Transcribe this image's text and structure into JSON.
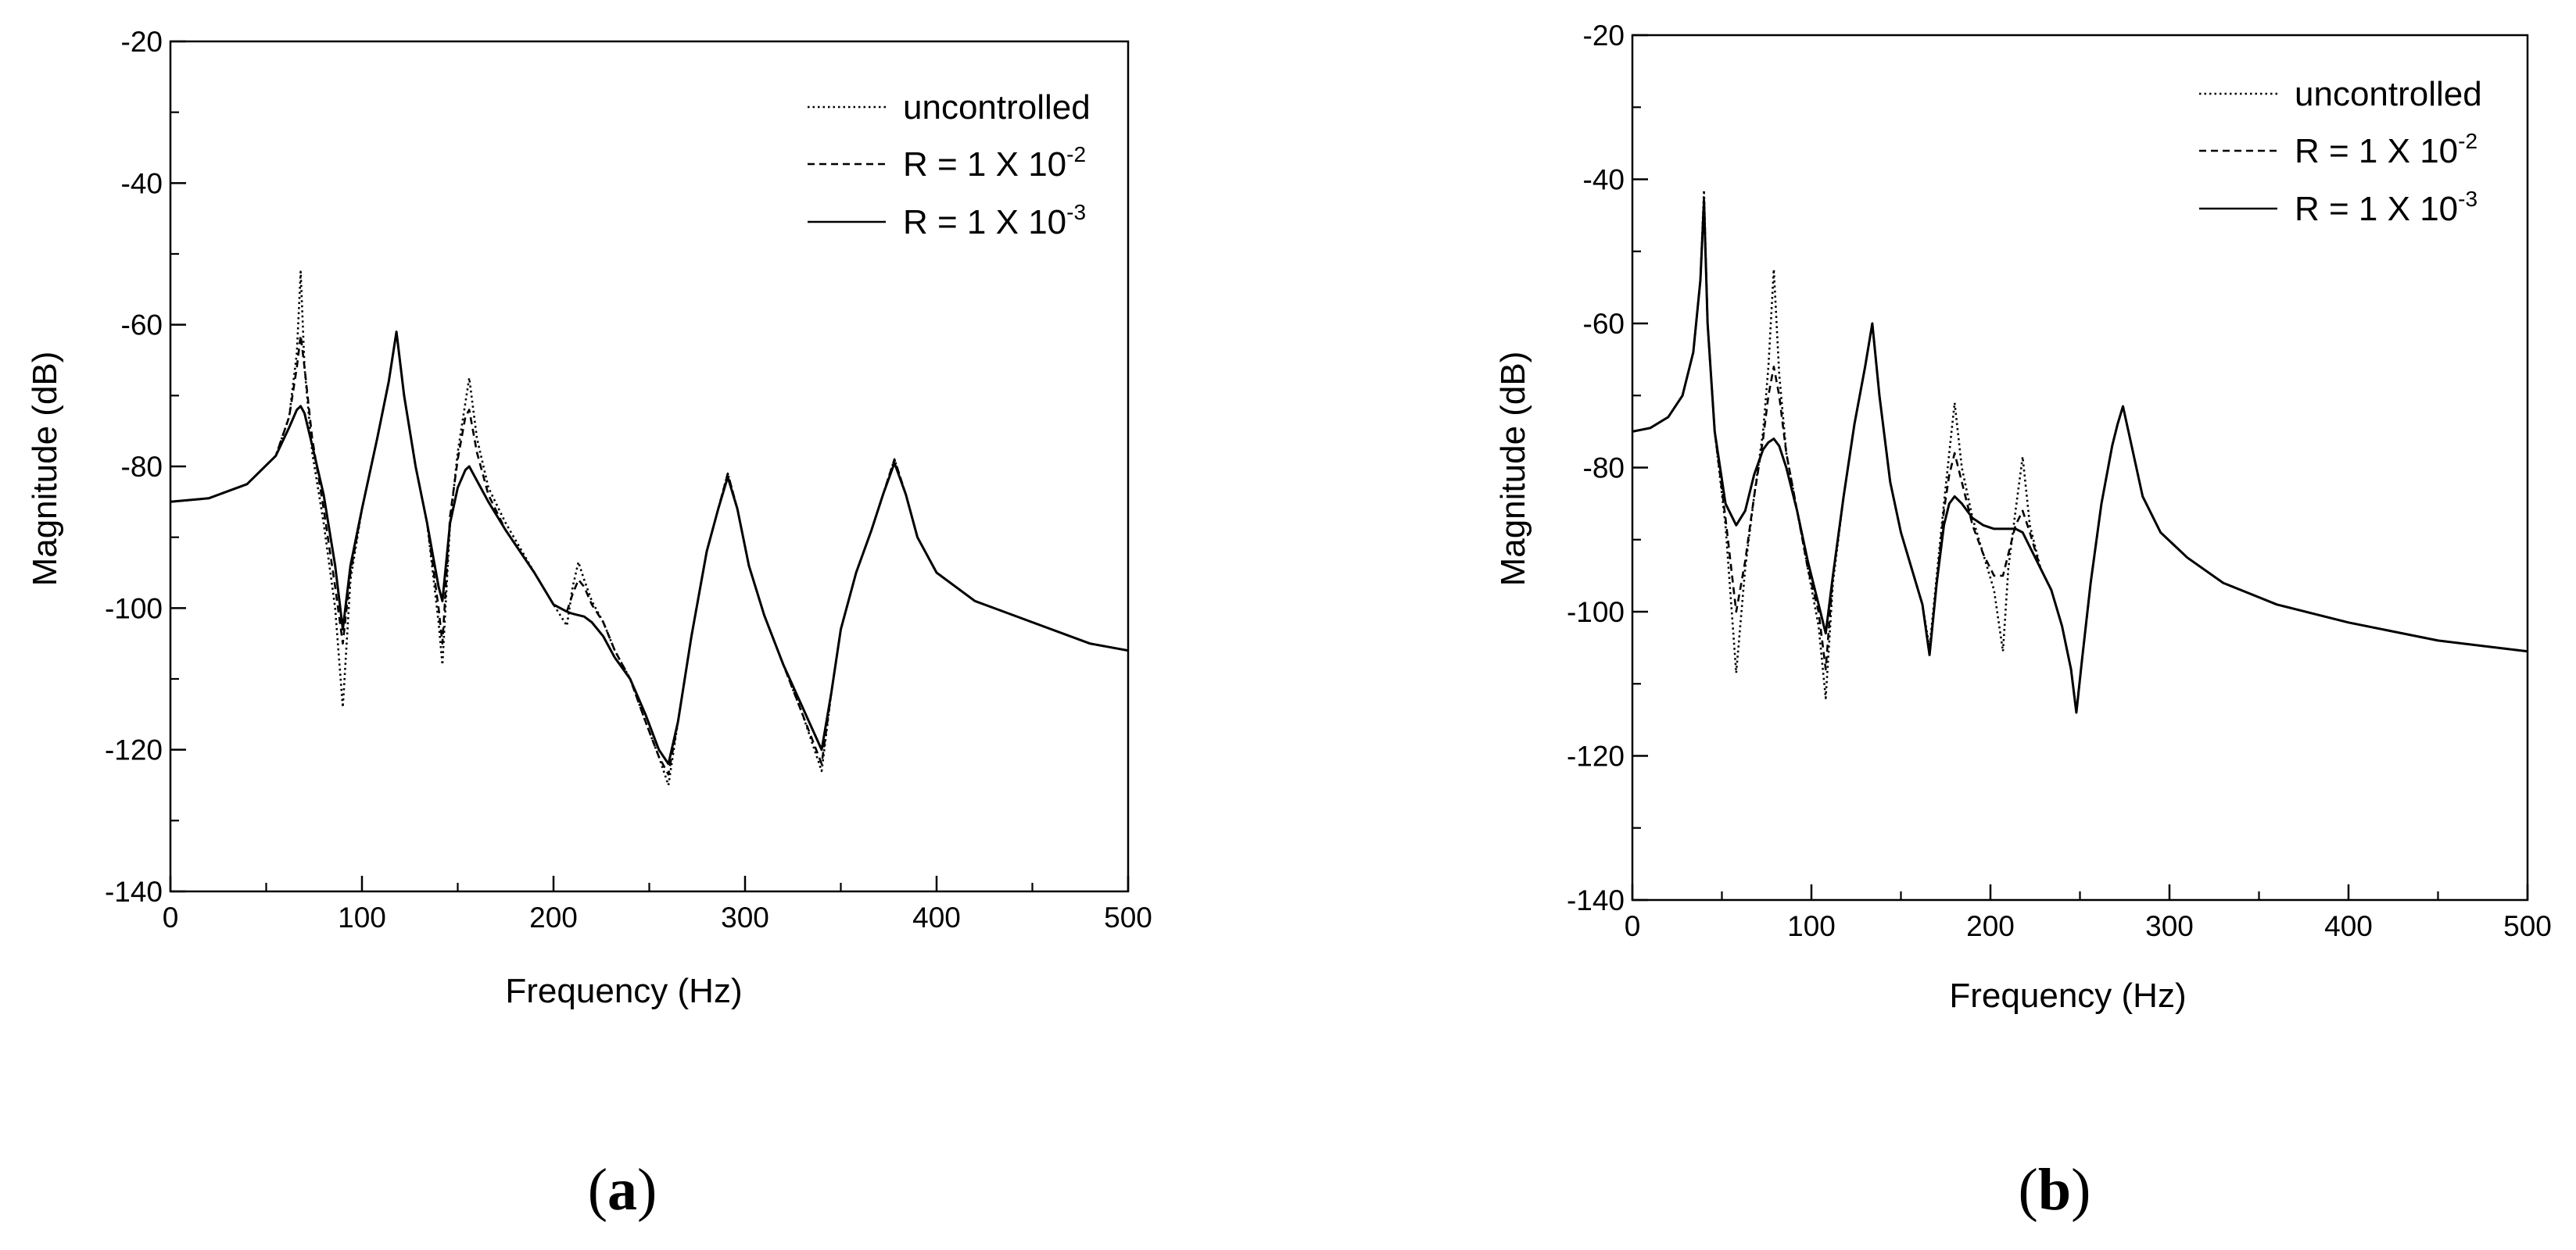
{
  "chart_data": [
    {
      "type": "line",
      "panel": "a",
      "panel_label": "(a)",
      "panel_letter": "a",
      "title": "",
      "xlabel": "Frequency (Hz)",
      "ylabel": "Magnitude (dB)",
      "xlim": [
        0,
        500
      ],
      "ylim": [
        -140,
        -20
      ],
      "x_ticks": [
        0,
        100,
        200,
        300,
        400,
        500
      ],
      "y_ticks": [
        -20,
        -40,
        -60,
        -80,
        -100,
        -120,
        -140
      ],
      "x_tick_labels": [
        "0",
        "100",
        "200",
        "300",
        "400",
        "500"
      ],
      "y_tick_labels": [
        "-20",
        "-40",
        "-60",
        "-80",
        "-100",
        "-120",
        "-140"
      ],
      "legend_position": "top-right",
      "legend": [
        {
          "base": "uncontrolled",
          "sup": ""
        },
        {
          "base": "R = 1 X 10",
          "sup": "-2"
        },
        {
          "base": "R = 1 X 10",
          "sup": "-3"
        }
      ],
      "series": [
        {
          "name": "uncontrolled",
          "style": "dotted",
          "x": [
            0,
            20,
            40,
            55,
            62,
            66,
            68,
            70,
            74,
            80,
            86,
            90,
            94,
            100,
            108,
            114,
            118,
            122,
            128,
            134,
            140,
            142,
            146,
            150,
            154,
            156,
            160,
            166,
            175,
            190,
            200,
            207,
            210,
            213,
            216,
            220,
            226,
            232,
            240,
            248,
            255,
            260,
            265,
            272,
            280,
            286,
            291,
            296,
            302,
            310,
            320,
            330,
            340,
            345,
            350,
            358,
            366,
            372,
            378,
            384,
            390,
            400,
            420,
            450,
            480,
            500
          ],
          "y": [
            -85,
            -84.5,
            -82.5,
            -78.5,
            -73,
            -64,
            -52.5,
            -66,
            -78,
            -88,
            -100,
            -114,
            -96,
            -86,
            -76,
            -68,
            -61,
            -70,
            -80,
            -88,
            -102,
            -108,
            -88,
            -78,
            -71,
            -67.5,
            -76,
            -83,
            -88,
            -95,
            -99.5,
            -102.5,
            -97,
            -93.5,
            -96,
            -99,
            -102,
            -106,
            -110,
            -116,
            -121,
            -125,
            -116,
            -104,
            -92,
            -86,
            -81,
            -86,
            -94,
            -101,
            -108,
            -115,
            -123,
            -112,
            -103,
            -95,
            -89,
            -84,
            -79,
            -84,
            -90,
            -95,
            -99,
            -102,
            -105,
            -106
          ]
        },
        {
          "name": "R = 1 X 10-2",
          "style": "dashed",
          "x": [
            0,
            20,
            40,
            55,
            62,
            66,
            68,
            70,
            74,
            80,
            86,
            90,
            94,
            100,
            108,
            114,
            118,
            122,
            128,
            134,
            140,
            142,
            146,
            150,
            154,
            156,
            160,
            166,
            175,
            190,
            200,
            207,
            210,
            213,
            216,
            220,
            226,
            232,
            240,
            248,
            255,
            260,
            265,
            272,
            280,
            286,
            291,
            296,
            302,
            310,
            320,
            330,
            340,
            345,
            350,
            358,
            366,
            372,
            378,
            384,
            390,
            400,
            420,
            450,
            480,
            500
          ],
          "y": [
            -85,
            -84.5,
            -82.5,
            -78.5,
            -73,
            -66,
            -61.5,
            -66,
            -76,
            -86,
            -97,
            -105,
            -95,
            -86,
            -76,
            -68,
            -61,
            -70,
            -80,
            -88,
            -100,
            -105,
            -87,
            -79,
            -73,
            -72,
            -78,
            -84,
            -89,
            -95,
            -99.5,
            -100.5,
            -98,
            -96,
            -97,
            -99.5,
            -102,
            -106,
            -110,
            -116,
            -121,
            -123.5,
            -116,
            -104,
            -92,
            -86,
            -81,
            -86,
            -94,
            -101,
            -108,
            -115,
            -122,
            -112,
            -103,
            -95,
            -89,
            -84,
            -79,
            -84,
            -90,
            -95,
            -99,
            -102,
            -105,
            -106
          ]
        },
        {
          "name": "R = 1 X 10-3",
          "style": "solid",
          "x": [
            0,
            20,
            40,
            55,
            62,
            66,
            68,
            70,
            74,
            80,
            86,
            90,
            94,
            100,
            108,
            114,
            118,
            122,
            128,
            134,
            140,
            142,
            146,
            150,
            154,
            156,
            160,
            166,
            175,
            190,
            200,
            207,
            210,
            213,
            216,
            220,
            226,
            232,
            240,
            248,
            255,
            260,
            265,
            272,
            280,
            286,
            291,
            296,
            302,
            310,
            320,
            330,
            340,
            345,
            350,
            358,
            366,
            372,
            378,
            384,
            390,
            400,
            420,
            450,
            480,
            500
          ],
          "y": [
            -85,
            -84.5,
            -82.5,
            -78.5,
            -74.5,
            -72,
            -71.5,
            -72.5,
            -77,
            -84,
            -94,
            -103,
            -94,
            -86,
            -76,
            -68,
            -61,
            -70,
            -80,
            -88,
            -97,
            -99,
            -88,
            -83,
            -80.5,
            -80,
            -82,
            -85,
            -89,
            -95,
            -99.5,
            -100.5,
            -100.8,
            -101,
            -101.2,
            -102,
            -104,
            -107,
            -110,
            -115,
            -120,
            -122,
            -116,
            -104,
            -92,
            -86,
            -81.5,
            -86,
            -94,
            -101,
            -108,
            -114,
            -120,
            -112,
            -103,
            -95,
            -89,
            -84,
            -79.5,
            -84,
            -90,
            -95,
            -99,
            -102,
            -105,
            -106
          ]
        }
      ]
    },
    {
      "type": "line",
      "panel": "b",
      "panel_label": "(b)",
      "panel_letter": "b",
      "title": "",
      "xlabel": "Frequency (Hz)",
      "ylabel": "Magnitude (dB)",
      "xlim": [
        0,
        500
      ],
      "ylim": [
        -140,
        -20
      ],
      "x_ticks": [
        0,
        100,
        200,
        300,
        400,
        500
      ],
      "y_ticks": [
        -20,
        -40,
        -60,
        -80,
        -100,
        -120,
        -140
      ],
      "x_tick_labels": [
        "0",
        "100",
        "200",
        "300",
        "400",
        "500"
      ],
      "y_tick_labels": [
        "-20",
        "-40",
        "-60",
        "-80",
        "-100",
        "-120",
        "-140"
      ],
      "legend_position": "top-right",
      "legend": [
        {
          "base": "uncontrolled",
          "sup": ""
        },
        {
          "base": "R = 1 X 10",
          "sup": "-2"
        },
        {
          "base": "R = 1 X 10",
          "sup": "-3"
        }
      ],
      "series": [
        {
          "name": "uncontrolled",
          "style": "dotted",
          "x": [
            0,
            10,
            20,
            28,
            34,
            38,
            40,
            42,
            46,
            52,
            58,
            63,
            68,
            73,
            76,
            79,
            82,
            86,
            92,
            98,
            104,
            108,
            112,
            118,
            124,
            130,
            134,
            138,
            144,
            150,
            156,
            162,
            166,
            170,
            174,
            177,
            180,
            184,
            190,
            196,
            202,
            207,
            210,
            214,
            218,
            222,
            228,
            234,
            240,
            245,
            248,
            251,
            256,
            262,
            268,
            271,
            274,
            278,
            285,
            295,
            310,
            330,
            360,
            400,
            450,
            500
          ],
          "y": [
            -75,
            -74.5,
            -73,
            -70,
            -64,
            -54,
            -41.5,
            -60,
            -75,
            -88,
            -108.5,
            -94,
            -84,
            -75,
            -66,
            -52.5,
            -67,
            -78,
            -86,
            -94,
            -102,
            -112,
            -96,
            -84,
            -74,
            -66,
            -60,
            -70,
            -82,
            -89,
            -94,
            -99,
            -105,
            -95,
            -85,
            -78,
            -71,
            -80,
            -87,
            -92,
            -97,
            -105.5,
            -94,
            -86,
            -78.5,
            -88,
            -94,
            -97,
            -102,
            -108,
            -114,
            -107,
            -96,
            -85,
            -77,
            -74,
            -71.5,
            -76,
            -84,
            -89,
            -92.5,
            -96,
            -99,
            -101.5,
            -104,
            -105.5
          ]
        },
        {
          "name": "R = 1 X 10-2",
          "style": "dashed",
          "x": [
            0,
            10,
            20,
            28,
            34,
            38,
            40,
            42,
            46,
            52,
            58,
            63,
            68,
            73,
            76,
            79,
            82,
            86,
            92,
            98,
            104,
            108,
            112,
            118,
            124,
            130,
            134,
            138,
            144,
            150,
            156,
            162,
            166,
            170,
            174,
            177,
            180,
            184,
            190,
            196,
            202,
            207,
            210,
            214,
            218,
            222,
            228,
            234,
            240,
            245,
            248,
            251,
            256,
            262,
            268,
            271,
            274,
            278,
            285,
            295,
            310,
            330,
            360,
            400,
            450,
            500
          ],
          "y": [
            -75,
            -74.5,
            -73,
            -70,
            -64,
            -54,
            -42.5,
            -60,
            -75,
            -87,
            -100,
            -93,
            -84,
            -76,
            -70,
            -66,
            -70,
            -78,
            -86,
            -94,
            -100,
            -108,
            -95,
            -84,
            -74,
            -66,
            -60,
            -70,
            -82,
            -89,
            -94,
            -99,
            -106,
            -96,
            -86,
            -81,
            -78,
            -82,
            -88,
            -92,
            -95,
            -95,
            -92,
            -88,
            -86,
            -89,
            -94,
            -97,
            -102,
            -108,
            -114,
            -107,
            -96,
            -85,
            -77,
            -74,
            -71.5,
            -76,
            -84,
            -89,
            -92.5,
            -96,
            -99,
            -101.5,
            -104,
            -105.5
          ]
        },
        {
          "name": "R = 1 X 10-3",
          "style": "solid",
          "x": [
            0,
            10,
            20,
            28,
            34,
            38,
            40,
            42,
            46,
            52,
            58,
            63,
            68,
            73,
            76,
            79,
            82,
            86,
            92,
            98,
            104,
            108,
            112,
            118,
            124,
            130,
            134,
            138,
            144,
            150,
            156,
            162,
            166,
            170,
            174,
            177,
            180,
            184,
            190,
            196,
            202,
            207,
            210,
            214,
            218,
            222,
            228,
            234,
            240,
            245,
            248,
            251,
            256,
            262,
            268,
            271,
            274,
            278,
            285,
            295,
            310,
            330,
            360,
            400,
            450,
            500
          ],
          "y": [
            -75,
            -74.5,
            -73,
            -70,
            -64,
            -54,
            -43,
            -60,
            -75,
            -85,
            -88,
            -86,
            -81,
            -77.5,
            -76.5,
            -76,
            -77,
            -80,
            -86,
            -93,
            -99,
            -103,
            -95,
            -84,
            -74,
            -66,
            -60,
            -70,
            -82,
            -89,
            -94,
            -99,
            -106,
            -96,
            -88,
            -85,
            -84,
            -85,
            -87,
            -88,
            -88.5,
            -88.5,
            -88.5,
            -88.5,
            -89,
            -91,
            -94,
            -97,
            -102,
            -108,
            -114,
            -107,
            -96,
            -85,
            -77,
            -74,
            -71.5,
            -76,
            -84,
            -89,
            -92.5,
            -96,
            -99,
            -101.5,
            -104,
            -105.5
          ]
        }
      ]
    }
  ]
}
